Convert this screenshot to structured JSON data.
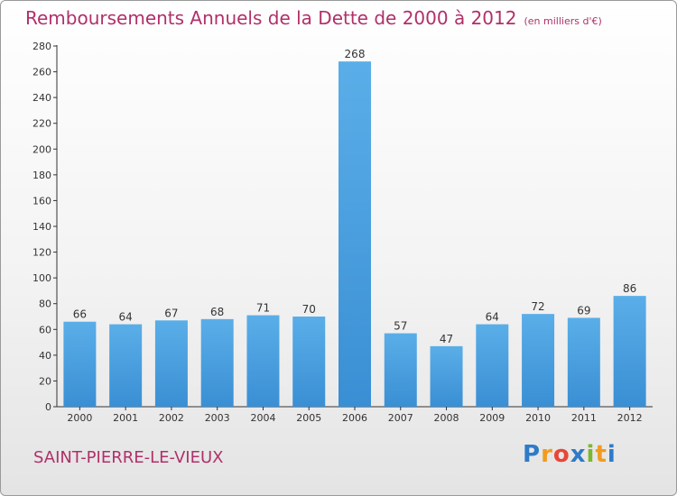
{
  "chart_data": {
    "type": "bar",
    "title": "Remboursements Annuels de la Dette de 2000 à 2012",
    "unit_note": "(en milliers d'€)",
    "categories": [
      "2000",
      "2001",
      "2002",
      "2003",
      "2004",
      "2005",
      "2006",
      "2007",
      "2008",
      "2009",
      "2010",
      "2011",
      "2012"
    ],
    "values": [
      66,
      64,
      67,
      68,
      71,
      70,
      268,
      57,
      47,
      64,
      72,
      69,
      86
    ],
    "ylim": [
      0,
      280
    ],
    "yticks": [
      0,
      20,
      40,
      60,
      80,
      100,
      120,
      140,
      160,
      180,
      200,
      220,
      240,
      260,
      280
    ],
    "grid": false,
    "bar_color": "#3a8fd4"
  },
  "commune": "SAINT-PIERRE-LE-VIEUX",
  "logo": {
    "letters": [
      "P",
      "r",
      "o",
      "x",
      "i",
      "t",
      "i"
    ],
    "colors": [
      "#2e7bc8",
      "#f29b1e",
      "#e8463a",
      "#2e7bc8",
      "#7cb82f",
      "#f29b1e",
      "#2e7bc8"
    ]
  }
}
